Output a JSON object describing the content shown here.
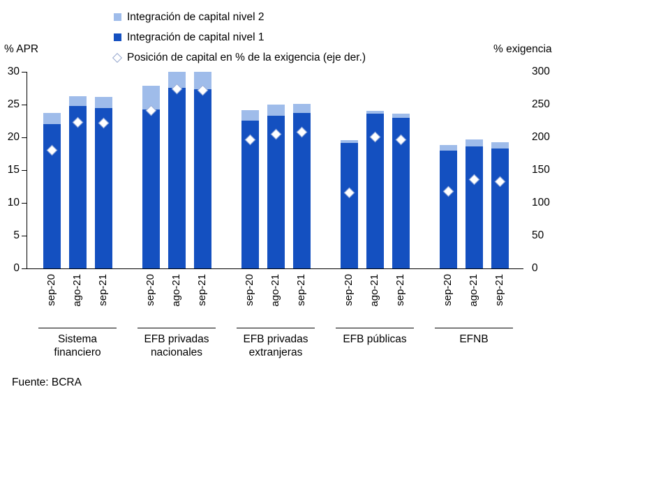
{
  "legend": {
    "items": [
      {
        "label": "Integración de capital nivel 2",
        "marker": "square",
        "color": "#9FBCEA"
      },
      {
        "label": "Integración de capital nivel 1",
        "marker": "square",
        "color": "#1450C0"
      },
      {
        "label": "Posición de capital en % de la exigencia (eje der.)",
        "marker": "diamond",
        "color": "#FFFFFF"
      }
    ]
  },
  "axes": {
    "left_title": "% APR",
    "right_title": "% exigencia"
  },
  "footer": {
    "source": "Fuente: BCRA"
  },
  "chart_data": {
    "type": "bar",
    "stacked": true,
    "left_axis": {
      "label": "% APR",
      "min": 0,
      "max": 30,
      "ticks": [
        0,
        5,
        10,
        15,
        20,
        25,
        30
      ]
    },
    "right_axis": {
      "label": "% exigencia",
      "min": 0,
      "max": 300,
      "ticks": [
        0,
        50,
        100,
        150,
        200,
        250,
        300
      ]
    },
    "bar_labels": [
      "sep-20",
      "ago-21",
      "sep-21"
    ],
    "series_names": [
      "Integración de capital nivel 1",
      "Integración de capital nivel 2",
      "Posición de capital en % de la exigencia (eje der.)"
    ],
    "groups": [
      {
        "name": "Sistema\nfinanciero",
        "nivel1": [
          22.0,
          24.8,
          24.5
        ],
        "nivel2": [
          1.7,
          1.5,
          1.7
        ],
        "posicion": [
          180,
          223,
          222
        ]
      },
      {
        "name": "EFB privadas\nnacionales",
        "nivel1": [
          24.3,
          27.6,
          27.3
        ],
        "nivel2": [
          3.6,
          2.4,
          2.7
        ],
        "posicion": [
          241,
          274,
          272
        ]
      },
      {
        "name": "EFB privadas\nextranjeras",
        "nivel1": [
          22.6,
          23.3,
          23.7
        ],
        "nivel2": [
          1.6,
          1.7,
          1.4
        ],
        "posicion": [
          196,
          205,
          208
        ]
      },
      {
        "name": "EFB públicas",
        "nivel1": [
          19.1,
          23.6,
          23.0
        ],
        "nivel2": [
          0.5,
          0.4,
          0.6
        ],
        "posicion": [
          115,
          201,
          196
        ]
      },
      {
        "name": "EFNB",
        "nivel1": [
          18.0,
          18.6,
          18.3
        ],
        "nivel2": [
          0.8,
          1.1,
          1.0
        ],
        "posicion": [
          118,
          136,
          132
        ]
      }
    ],
    "colors": {
      "nivel1": "#1450C0",
      "nivel2": "#9FBCEA",
      "marker_fill": "#FFFFFF",
      "marker_edge": "#8FA6D6"
    }
  }
}
